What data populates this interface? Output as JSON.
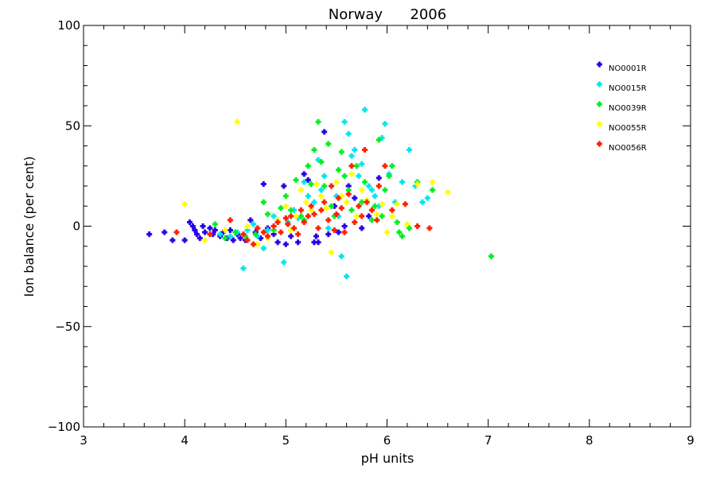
{
  "chart_data": {
    "type": "scatter",
    "title": "Norway      2006",
    "xlabel": "pH units",
    "ylabel": "Ion balance (per cent)",
    "xlim": [
      3,
      9
    ],
    "ylim": [
      -100,
      100
    ],
    "x_ticks": [
      3,
      4,
      5,
      6,
      7,
      8,
      9
    ],
    "y_ticks": [
      -100,
      -50,
      0,
      50,
      100
    ],
    "x_minor_step": 0.2,
    "y_minor_step": 10,
    "grid": false,
    "legend_position": "top-right",
    "series": [
      {
        "name": "NO0001R",
        "color": "#2a00e6",
        "points": [
          [
            3.65,
            -4
          ],
          [
            3.8,
            -3
          ],
          [
            3.88,
            -7
          ],
          [
            4.0,
            -7
          ],
          [
            4.05,
            2
          ],
          [
            4.08,
            0
          ],
          [
            4.1,
            -2
          ],
          [
            4.12,
            -4
          ],
          [
            4.15,
            -6
          ],
          [
            4.18,
            0
          ],
          [
            4.2,
            -3
          ],
          [
            4.25,
            -1
          ],
          [
            4.28,
            -4
          ],
          [
            4.3,
            -2
          ],
          [
            4.35,
            -5
          ],
          [
            4.38,
            -3
          ],
          [
            4.42,
            -6
          ],
          [
            4.45,
            -2
          ],
          [
            4.48,
            -7
          ],
          [
            4.52,
            -4
          ],
          [
            4.55,
            -6
          ],
          [
            4.6,
            -7
          ],
          [
            4.65,
            3
          ],
          [
            4.7,
            -3
          ],
          [
            4.75,
            -6
          ],
          [
            4.78,
            21
          ],
          [
            4.82,
            -1
          ],
          [
            4.88,
            -4
          ],
          [
            4.92,
            -8
          ],
          [
            4.98,
            20
          ],
          [
            5.0,
            -9
          ],
          [
            5.05,
            -5
          ],
          [
            5.12,
            -8
          ],
          [
            5.18,
            26
          ],
          [
            5.22,
            23
          ],
          [
            5.28,
            -8
          ],
          [
            5.3,
            -5
          ],
          [
            5.32,
            -8
          ],
          [
            5.38,
            47
          ],
          [
            5.42,
            -4
          ],
          [
            5.48,
            10
          ],
          [
            5.52,
            -3
          ],
          [
            5.58,
            0
          ],
          [
            5.62,
            20
          ],
          [
            5.68,
            14
          ],
          [
            5.75,
            -1
          ],
          [
            5.82,
            5
          ],
          [
            5.92,
            24
          ]
        ]
      },
      {
        "name": "NO0015R",
        "color": "#00e6f0",
        "points": [
          [
            4.35,
            -4
          ],
          [
            4.45,
            -5
          ],
          [
            4.52,
            -3
          ],
          [
            4.58,
            -21
          ],
          [
            4.62,
            -2
          ],
          [
            4.68,
            1
          ],
          [
            4.72,
            -5
          ],
          [
            4.78,
            -11
          ],
          [
            4.82,
            -2
          ],
          [
            4.88,
            5
          ],
          [
            4.92,
            3
          ],
          [
            4.98,
            -18
          ],
          [
            5.02,
            2
          ],
          [
            5.08,
            8
          ],
          [
            5.12,
            4
          ],
          [
            5.18,
            22
          ],
          [
            5.22,
            15
          ],
          [
            5.28,
            12
          ],
          [
            5.32,
            33
          ],
          [
            5.35,
            18
          ],
          [
            5.38,
            25
          ],
          [
            5.42,
            -1
          ],
          [
            5.45,
            20
          ],
          [
            5.5,
            15
          ],
          [
            5.52,
            5
          ],
          [
            5.55,
            -15
          ],
          [
            5.58,
            52
          ],
          [
            5.6,
            -25
          ],
          [
            5.62,
            46
          ],
          [
            5.65,
            35
          ],
          [
            5.68,
            38
          ],
          [
            5.72,
            25
          ],
          [
            5.75,
            31
          ],
          [
            5.78,
            58
          ],
          [
            5.82,
            20
          ],
          [
            5.85,
            18
          ],
          [
            5.88,
            15
          ],
          [
            5.92,
            10
          ],
          [
            5.95,
            44
          ],
          [
            5.98,
            51
          ],
          [
            6.02,
            26
          ],
          [
            6.08,
            12
          ],
          [
            6.15,
            22
          ],
          [
            6.22,
            38
          ],
          [
            6.28,
            20
          ],
          [
            6.35,
            12
          ],
          [
            6.4,
            14
          ]
        ]
      },
      {
        "name": "NO0039R",
        "color": "#00f020",
        "points": [
          [
            4.3,
            1
          ],
          [
            4.4,
            -6
          ],
          [
            4.5,
            -3
          ],
          [
            4.6,
            -5
          ],
          [
            4.7,
            -4
          ],
          [
            4.78,
            12
          ],
          [
            4.82,
            6
          ],
          [
            4.88,
            -2
          ],
          [
            4.95,
            9
          ],
          [
            5.0,
            15
          ],
          [
            5.05,
            8
          ],
          [
            5.1,
            23
          ],
          [
            5.15,
            5
          ],
          [
            5.18,
            3
          ],
          [
            5.22,
            30
          ],
          [
            5.25,
            21
          ],
          [
            5.28,
            38
          ],
          [
            5.32,
            52
          ],
          [
            5.35,
            32
          ],
          [
            5.38,
            20
          ],
          [
            5.42,
            41
          ],
          [
            5.45,
            10
          ],
          [
            5.48,
            5
          ],
          [
            5.52,
            28
          ],
          [
            5.55,
            37
          ],
          [
            5.58,
            25
          ],
          [
            5.62,
            18
          ],
          [
            5.65,
            8
          ],
          [
            5.7,
            30
          ],
          [
            5.75,
            12
          ],
          [
            5.78,
            22
          ],
          [
            5.85,
            3
          ],
          [
            5.88,
            10
          ],
          [
            5.92,
            43
          ],
          [
            5.95,
            5
          ],
          [
            5.98,
            18
          ],
          [
            6.02,
            25
          ],
          [
            6.05,
            30
          ],
          [
            6.1,
            2
          ],
          [
            6.12,
            -3
          ],
          [
            6.15,
            -5
          ],
          [
            6.22,
            -1
          ],
          [
            6.3,
            22
          ],
          [
            6.45,
            18
          ],
          [
            7.03,
            -15
          ]
        ]
      },
      {
        "name": "NO0055R",
        "color": "#ffff00",
        "points": [
          [
            4.0,
            11
          ],
          [
            4.2,
            -7
          ],
          [
            4.4,
            -2
          ],
          [
            4.52,
            52
          ],
          [
            4.62,
            0
          ],
          [
            4.72,
            -9
          ],
          [
            4.82,
            -6
          ],
          [
            4.92,
            3
          ],
          [
            5.0,
            10
          ],
          [
            5.05,
            -2
          ],
          [
            5.1,
            5
          ],
          [
            5.15,
            18
          ],
          [
            5.2,
            12
          ],
          [
            5.25,
            8
          ],
          [
            5.3,
            21
          ],
          [
            5.35,
            15
          ],
          [
            5.4,
            9
          ],
          [
            5.45,
            -13
          ],
          [
            5.5,
            22
          ],
          [
            5.55,
            15
          ],
          [
            5.6,
            12
          ],
          [
            5.65,
            26
          ],
          [
            5.7,
            5
          ],
          [
            5.75,
            18
          ],
          [
            5.8,
            13
          ],
          [
            5.85,
            8
          ],
          [
            5.9,
            6
          ],
          [
            5.95,
            11
          ],
          [
            6.0,
            -3
          ],
          [
            6.05,
            5
          ],
          [
            6.1,
            11
          ],
          [
            6.2,
            1
          ],
          [
            6.3,
            21
          ],
          [
            6.45,
            22
          ],
          [
            6.6,
            17
          ]
        ]
      },
      {
        "name": "NO0056R",
        "color": "#ff2000",
        "points": [
          [
            3.92,
            -3
          ],
          [
            4.25,
            -4
          ],
          [
            4.45,
            3
          ],
          [
            4.58,
            -4
          ],
          [
            4.62,
            -7
          ],
          [
            4.68,
            -9
          ],
          [
            4.72,
            -1
          ],
          [
            4.78,
            -3
          ],
          [
            4.82,
            -5
          ],
          [
            4.88,
            0
          ],
          [
            4.92,
            2
          ],
          [
            4.95,
            -3
          ],
          [
            5.0,
            4
          ],
          [
            5.02,
            1
          ],
          [
            5.05,
            5
          ],
          [
            5.08,
            -1
          ],
          [
            5.12,
            -4
          ],
          [
            5.15,
            8
          ],
          [
            5.18,
            2
          ],
          [
            5.22,
            5
          ],
          [
            5.25,
            10
          ],
          [
            5.28,
            6
          ],
          [
            5.32,
            -1
          ],
          [
            5.35,
            8
          ],
          [
            5.38,
            12
          ],
          [
            5.42,
            3
          ],
          [
            5.45,
            20
          ],
          [
            5.48,
            -2
          ],
          [
            5.5,
            6
          ],
          [
            5.52,
            14
          ],
          [
            5.55,
            9
          ],
          [
            5.58,
            -3
          ],
          [
            5.62,
            16
          ],
          [
            5.65,
            30
          ],
          [
            5.68,
            2
          ],
          [
            5.72,
            10
          ],
          [
            5.75,
            5
          ],
          [
            5.78,
            38
          ],
          [
            5.8,
            12
          ],
          [
            5.85,
            8
          ],
          [
            5.9,
            3
          ],
          [
            5.92,
            20
          ],
          [
            5.98,
            30
          ],
          [
            6.05,
            8
          ],
          [
            6.18,
            11
          ],
          [
            6.3,
            0
          ],
          [
            6.42,
            -1
          ]
        ]
      }
    ]
  }
}
